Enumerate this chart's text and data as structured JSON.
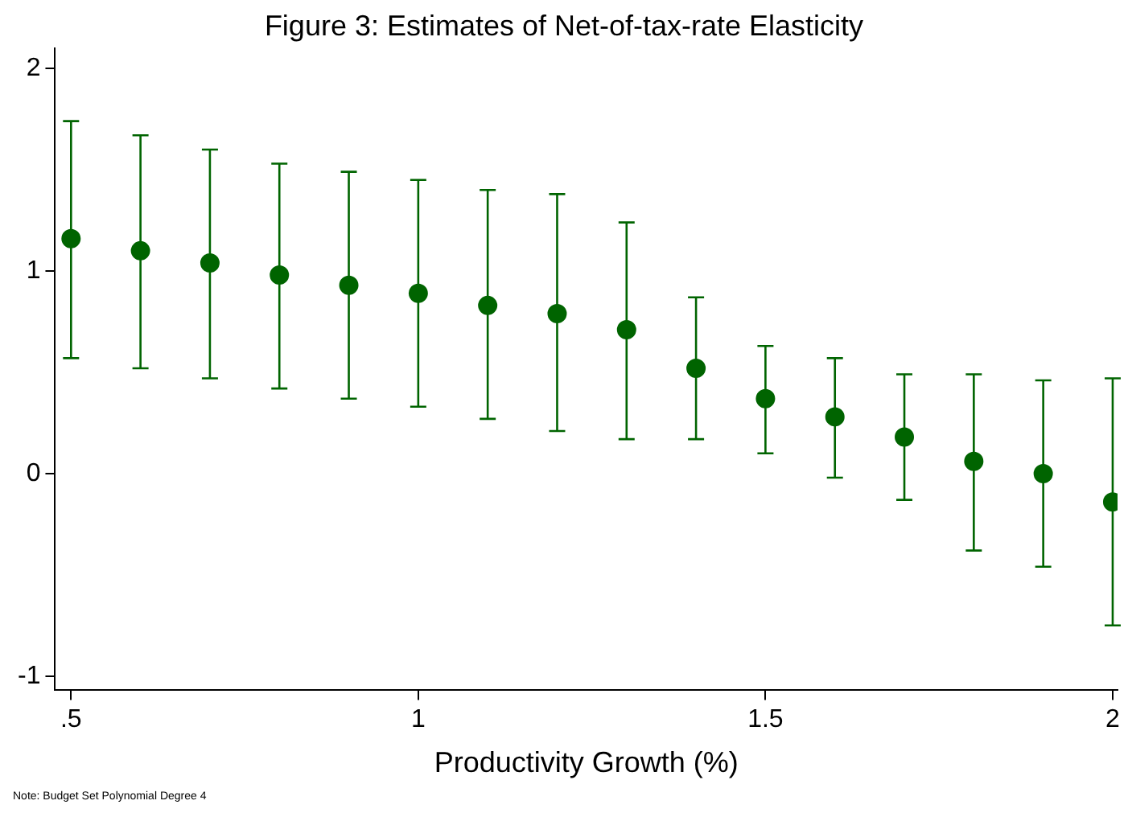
{
  "chart_data": {
    "type": "scatter",
    "title": "Figure 3: Estimates of Net-of-tax-rate Elasticity",
    "xlabel": "Productivity Growth (%)",
    "x": [
      0.5,
      0.6,
      0.7,
      0.8,
      0.9,
      1.0,
      1.1,
      1.2,
      1.3,
      1.4,
      1.5,
      1.6,
      1.7,
      1.8,
      1.9,
      2.0
    ],
    "series": [
      {
        "color": "#006400",
        "values": [
          1.16,
          1.1,
          1.04,
          0.98,
          0.93,
          0.89,
          0.83,
          0.79,
          0.71,
          0.52,
          0.37,
          0.28,
          0.18,
          0.06,
          0.0,
          -0.14
        ],
        "errors": [
          [
            0.57,
            1.74
          ],
          [
            0.52,
            1.67
          ],
          [
            0.47,
            1.6
          ],
          [
            0.42,
            1.53
          ],
          [
            0.37,
            1.49
          ],
          [
            0.33,
            1.45
          ],
          [
            0.27,
            1.4
          ],
          [
            0.21,
            1.38
          ],
          [
            0.17,
            1.24
          ],
          [
            0.17,
            0.87
          ],
          [
            0.1,
            0.63
          ],
          [
            -0.02,
            0.57
          ],
          [
            -0.13,
            0.49
          ],
          [
            -0.38,
            0.49
          ],
          [
            -0.46,
            0.46
          ],
          [
            -0.75,
            0.47
          ]
        ]
      }
    ],
    "xlim": [
      0.477,
      2.007
    ],
    "xticks": [
      {
        "value": 0.5,
        "label": ".5"
      },
      1,
      1.5,
      2
    ],
    "ylim": [
      -1.07,
      2.1
    ],
    "yticks": [
      -1,
      0,
      1,
      2
    ],
    "grid": false,
    "legend": false,
    "marker": "circle",
    "annotations": [
      "Note: Budget Set Polynomial Degree 4"
    ]
  }
}
